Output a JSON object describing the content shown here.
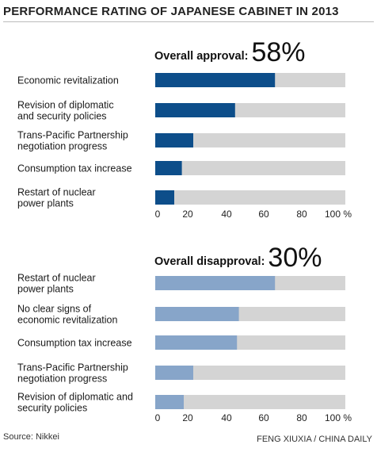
{
  "title": "PERFORMANCE RATING OF JAPANESE CABINET IN 2013",
  "source": "Source: Nikkei",
  "credit": "FENG XIUXIA / CHINA DAILY",
  "chart_data": [
    {
      "type": "bar",
      "orientation": "horizontal",
      "heading_label": "Overall approval:",
      "heading_value": "58%",
      "categories": [
        [
          "Economic revitalization"
        ],
        [
          "Revision of diplomatic",
          "and security policies"
        ],
        [
          "Trans-Pacific Partnership",
          "negotiation progress"
        ],
        [
          "Consumption tax increase"
        ],
        [
          "Restart of nuclear",
          "power plants"
        ]
      ],
      "values": [
        63,
        42,
        20,
        14,
        10
      ],
      "xlim": [
        0,
        100
      ],
      "ticks": [
        "0",
        "20",
        "40",
        "60",
        "80",
        "100 %"
      ],
      "bar_color": "#0d4e8a",
      "track_color": "#d4d4d4"
    },
    {
      "type": "bar",
      "orientation": "horizontal",
      "heading_label": "Overall disapproval:",
      "heading_value": "30%",
      "categories": [
        [
          "Restart of nuclear",
          "power plants"
        ],
        [
          "No clear signs of",
          "economic revitalization"
        ],
        [
          "Consumption tax increase"
        ],
        [
          "Trans-Pacific Partnership",
          "negotiation progress"
        ],
        [
          "Revision of diplomatic and",
          "security policies"
        ]
      ],
      "values": [
        63,
        44,
        43,
        20,
        15
      ],
      "xlim": [
        0,
        100
      ],
      "ticks": [
        "0",
        "20",
        "40",
        "60",
        "80",
        "100 %"
      ],
      "bar_color": "#87a5c9",
      "track_color": "#d4d4d4"
    }
  ]
}
